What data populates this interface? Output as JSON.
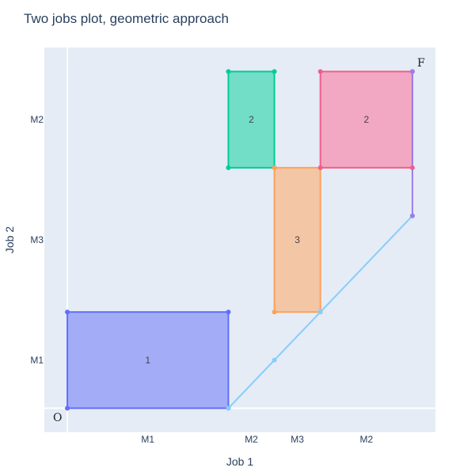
{
  "chart_data": {
    "type": "scatter",
    "title": "Two jobs plot, geometric approach",
    "xlabel": "Job 1",
    "ylabel": "Job 2",
    "xlim": [
      -0.5,
      8
    ],
    "ylim": [
      -0.5,
      7.5
    ],
    "x_ticks": [
      {
        "value": 1.75,
        "label": "M1"
      },
      {
        "value": 4,
        "label": "M2"
      },
      {
        "value": 5,
        "label": "M3"
      },
      {
        "value": 6.5,
        "label": "M2"
      }
    ],
    "y_ticks": [
      {
        "value": 1,
        "label": "M1"
      },
      {
        "value": 3.5,
        "label": "M3"
      },
      {
        "value": 6,
        "label": "M2"
      }
    ],
    "rectangles": [
      {
        "label": "1",
        "x0": 0,
        "x1": 3.5,
        "y0": 0,
        "y1": 2,
        "fill": "#a3adf7",
        "line": "#636efa"
      },
      {
        "label": "2",
        "x0": 3.5,
        "x1": 4.5,
        "y0": 5,
        "y1": 7,
        "fill": "#72dec8",
        "line": "#00cc96"
      },
      {
        "label": "3",
        "x0": 4.5,
        "x1": 5.5,
        "y0": 2,
        "y1": 5,
        "fill": "#f3c6a6",
        "line": "#ffa15a"
      },
      {
        "label": "2",
        "x0": 5.5,
        "x1": 7.5,
        "y0": 5,
        "y1": 7,
        "fill": "#f2a7c3",
        "line": "#ef5f8b"
      }
    ],
    "path": {
      "color": "#87cefa",
      "points": [
        [
          3.5,
          0
        ],
        [
          4.5,
          1
        ],
        [
          5.5,
          2
        ],
        [
          7.5,
          4
        ]
      ]
    },
    "end_segment": {
      "color": "#9c7ee8",
      "points": [
        [
          7.5,
          4
        ],
        [
          7.5,
          7
        ]
      ]
    },
    "origin_label": "O",
    "finish_label": "F",
    "background": "#e5ecf6",
    "grid_color": "#ffffff"
  }
}
